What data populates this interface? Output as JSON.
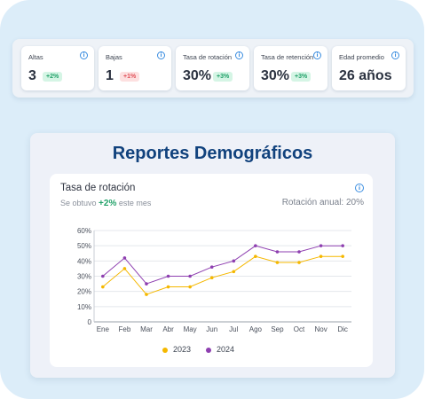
{
  "kpis": [
    {
      "title": "Altas",
      "value": "3",
      "badge": "+2%",
      "trend": "up"
    },
    {
      "title": "Bajas",
      "value": "1",
      "badge": "+1%",
      "trend": "down"
    },
    {
      "title": "Tasa de rotación",
      "value": "30%",
      "badge": "+3%",
      "trend": "up"
    },
    {
      "title": "Tasa de retención",
      "value": "30%",
      "badge": "+3%",
      "trend": "up"
    },
    {
      "title": "Edad promedio",
      "value": "26 años",
      "badge": "",
      "trend": ""
    }
  ],
  "icons": {
    "info": "info-icon"
  },
  "report": {
    "title": "Reportes Demográficos",
    "chart_title": "Tasa de rotación",
    "subtitle_prefix": "Se obtuvo",
    "subtitle_delta": "+2%",
    "subtitle_suffix": "este mes",
    "annual": "Rotación anual: 20%"
  },
  "colors": {
    "series_2023": "#f5b800",
    "series_2024": "#8e3fb0",
    "up": "#23a26a",
    "down": "#e0525a",
    "title": "#11427d"
  },
  "chart_data": {
    "type": "line",
    "title": "Tasa de rotación",
    "xlabel": "",
    "ylabel": "",
    "categories": [
      "Ene",
      "Feb",
      "Mar",
      "Abr",
      "May",
      "Jun",
      "Jul",
      "Ago",
      "Sep",
      "Oct",
      "Nov",
      "Dic"
    ],
    "yticks": [
      "0",
      "10%",
      "20%",
      "30%",
      "40%",
      "50%",
      "60%"
    ],
    "ylim": [
      0,
      60
    ],
    "grid": true,
    "legend": "bottom-center",
    "series": [
      {
        "name": "2023",
        "values": [
          23,
          35,
          18,
          23,
          23,
          29,
          33,
          43,
          39,
          39,
          43,
          43
        ]
      },
      {
        "name": "2024",
        "values": [
          30,
          42,
          25,
          30,
          30,
          36,
          40,
          50,
          46,
          46,
          50,
          50
        ]
      }
    ]
  }
}
